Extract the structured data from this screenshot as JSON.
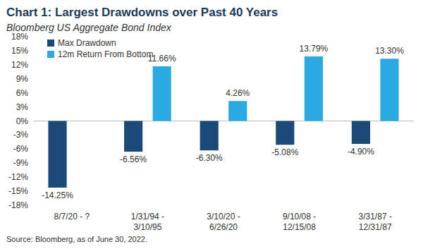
{
  "chart_data": {
    "type": "bar",
    "title": "Chart 1: Largest Drawdowns over Past 40 Years",
    "subtitle": "Bloomberg US Aggregate Bond Index",
    "source": "Source: Bloomberg, as of June 30, 2022.",
    "categories": [
      "8/7/20 - ?",
      "1/31/94 -\n3/10/95",
      "3/10/20 -\n6/26/20",
      "9/10/08 -\n12/15/08",
      "3/31/87 -\n12/31/87"
    ],
    "series": [
      {
        "name": "Max Drawdown",
        "color": "#1b4a78",
        "values": [
          -14.25,
          -6.56,
          -6.3,
          -5.08,
          -4.9
        ],
        "value_labels": [
          "-14.25%",
          "-6.56%",
          "-6.30%",
          "-5.08%",
          "-4.90%"
        ]
      },
      {
        "name": "12m Return From Bottom",
        "color": "#29abe2",
        "values": [
          null,
          11.66,
          4.26,
          13.79,
          13.3
        ],
        "value_labels": [
          null,
          "11.66%",
          "4.26%",
          "13.79%",
          "13.30%"
        ]
      }
    ],
    "ylim": [
      -18,
      18
    ],
    "yticks": [
      {
        "value": -18,
        "label": "-18%"
      },
      {
        "value": -15,
        "label": "-15%"
      },
      {
        "value": -12,
        "label": "-12%"
      },
      {
        "value": -9,
        "label": "-9%"
      },
      {
        "value": -6,
        "label": "-6%"
      },
      {
        "value": -3,
        "label": "-3%"
      },
      {
        "value": 0,
        "label": "0%"
      },
      {
        "value": 3,
        "label": "3%"
      },
      {
        "value": 6,
        "label": "6%"
      },
      {
        "value": 9,
        "label": "9%"
      },
      {
        "value": 12,
        "label": "12%"
      },
      {
        "value": 15,
        "label": "15%"
      },
      {
        "value": 18,
        "label": "18%"
      }
    ],
    "grid": false,
    "legend": "top-left",
    "data_labels": true
  }
}
